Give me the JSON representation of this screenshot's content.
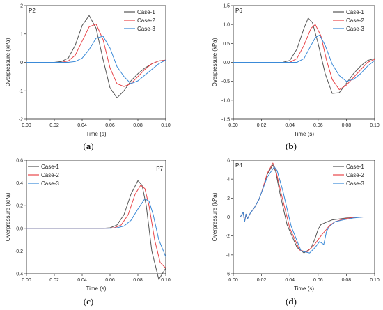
{
  "chart_data": [
    {
      "type": "line",
      "panel_label": "P2",
      "caption_open": "(",
      "caption_letter": "a",
      "caption_close": ")",
      "xlabel": "Time (s)",
      "ylabel": "Overpressure (kPa)",
      "xlim": [
        0,
        0.1
      ],
      "ylim": [
        -2,
        2
      ],
      "xticks": [
        "0.00",
        "0.02",
        "0.04",
        "0.06",
        "0.08",
        "0.10"
      ],
      "xtick_values": [
        0,
        0.02,
        0.04,
        0.06,
        0.08,
        0.1
      ],
      "yticks": [
        "-2",
        "-1",
        "0",
        "1",
        "2"
      ],
      "ytick_values": [
        -2,
        -1,
        0,
        1,
        2
      ],
      "legend_position": "top-right",
      "series": [
        {
          "name": "Case-1",
          "color": "#555555",
          "x": [
            0,
            0.02,
            0.025,
            0.03,
            0.035,
            0.04,
            0.045,
            0.05,
            0.055,
            0.06,
            0.065,
            0.07,
            0.075,
            0.08,
            0.085,
            0.09,
            0.095,
            0.1
          ],
          "y": [
            0,
            0,
            0.03,
            0.15,
            0.6,
            1.3,
            1.65,
            1.2,
            0.1,
            -0.9,
            -1.25,
            -1.0,
            -0.65,
            -0.4,
            -0.2,
            -0.05,
            0.05,
            0.08
          ]
        },
        {
          "name": "Case-2",
          "color": "#e8454a",
          "x": [
            0,
            0.025,
            0.03,
            0.035,
            0.04,
            0.045,
            0.05,
            0.055,
            0.06,
            0.065,
            0.07,
            0.075,
            0.08,
            0.085,
            0.09,
            0.095,
            0.1
          ],
          "y": [
            0,
            0,
            0.05,
            0.25,
            0.75,
            1.25,
            1.35,
            0.8,
            -0.2,
            -0.75,
            -0.85,
            -0.75,
            -0.5,
            -0.25,
            -0.05,
            0.05,
            0.08
          ]
        },
        {
          "name": "Case-3",
          "color": "#3a8ad8",
          "x": [
            0,
            0.03,
            0.035,
            0.04,
            0.045,
            0.05,
            0.055,
            0.06,
            0.065,
            0.07,
            0.075,
            0.08,
            0.085,
            0.09,
            0.095,
            0.1
          ],
          "y": [
            0,
            0,
            0.03,
            0.15,
            0.45,
            0.85,
            0.92,
            0.5,
            -0.15,
            -0.5,
            -0.75,
            -0.65,
            -0.45,
            -0.25,
            -0.05,
            0.08
          ]
        }
      ]
    },
    {
      "type": "line",
      "panel_label": "P6",
      "caption_open": "(",
      "caption_letter": "b",
      "caption_close": ")",
      "xlabel": "Time (s)",
      "ylabel": "Overpressure (kPa)",
      "xlim": [
        0,
        0.1
      ],
      "ylim": [
        -1.5,
        1.5
      ],
      "xticks": [
        "0.00",
        "0.02",
        "0.04",
        "0.06",
        "0.08",
        "0.10"
      ],
      "xtick_values": [
        0,
        0.02,
        0.04,
        0.06,
        0.08,
        0.1
      ],
      "yticks": [
        "-1.5",
        "-1.0",
        "-0.5",
        "0.0",
        "0.5",
        "1.0",
        "1.5"
      ],
      "ytick_values": [
        -1.5,
        -1,
        -0.5,
        0,
        0.5,
        1,
        1.5
      ],
      "legend_position": "top-right",
      "series": [
        {
          "name": "Case-1",
          "color": "#555555",
          "x": [
            0,
            0.035,
            0.04,
            0.045,
            0.05,
            0.053,
            0.056,
            0.06,
            0.065,
            0.07,
            0.075,
            0.08,
            0.085,
            0.09,
            0.095,
            0.1
          ],
          "y": [
            0,
            0,
            0.05,
            0.35,
            0.9,
            1.17,
            1.05,
            0.5,
            -0.3,
            -0.82,
            -0.8,
            -0.55,
            -0.3,
            -0.1,
            0.05,
            0.1
          ]
        },
        {
          "name": "Case-2",
          "color": "#e8454a",
          "x": [
            0,
            0.04,
            0.045,
            0.05,
            0.055,
            0.058,
            0.062,
            0.066,
            0.07,
            0.075,
            0.08,
            0.085,
            0.09,
            0.095,
            0.1
          ],
          "y": [
            0,
            0,
            0.1,
            0.45,
            0.9,
            1.0,
            0.7,
            0.05,
            -0.45,
            -0.72,
            -0.6,
            -0.4,
            -0.2,
            0.0,
            0.08
          ]
        },
        {
          "name": "Case-3",
          "color": "#3a8ad8",
          "x": [
            0,
            0.045,
            0.05,
            0.055,
            0.058,
            0.061,
            0.065,
            0.07,
            0.075,
            0.08,
            0.085,
            0.09,
            0.095,
            0.1
          ],
          "y": [
            0,
            0,
            0.1,
            0.45,
            0.65,
            0.72,
            0.45,
            -0.05,
            -0.35,
            -0.5,
            -0.45,
            -0.3,
            -0.1,
            0.05
          ]
        }
      ]
    },
    {
      "type": "line",
      "panel_label": "P7",
      "caption_open": "(",
      "caption_letter": "c",
      "caption_close": ")",
      "xlabel": "Time (s)",
      "ylabel": "Overpressure (kPa)",
      "xlim": [
        0,
        0.1
      ],
      "ylim": [
        -0.4,
        0.6
      ],
      "xticks": [
        "0.00",
        "0.02",
        "0.04",
        "0.06",
        "0.08",
        "0.10"
      ],
      "xtick_values": [
        0,
        0.02,
        0.04,
        0.06,
        0.08,
        0.1
      ],
      "yticks": [
        "-0.4",
        "-0.2",
        "0.0",
        "0.2",
        "0.4",
        "0.6"
      ],
      "ytick_values": [
        -0.4,
        -0.2,
        0,
        0.2,
        0.4,
        0.6
      ],
      "legend_position": "top-left",
      "series": [
        {
          "name": "Case-1",
          "color": "#555555",
          "x": [
            0,
            0.055,
            0.06,
            0.065,
            0.07,
            0.075,
            0.08,
            0.083,
            0.086,
            0.09,
            0.095,
            0.1
          ],
          "y": [
            0,
            0,
            0.005,
            0.03,
            0.12,
            0.3,
            0.42,
            0.38,
            0.2,
            -0.2,
            -0.45,
            -0.35
          ]
        },
        {
          "name": "Case-2",
          "color": "#e8454a",
          "x": [
            0,
            0.058,
            0.063,
            0.068,
            0.073,
            0.078,
            0.082,
            0.085,
            0.088,
            0.092,
            0.096,
            0.1
          ],
          "y": [
            0,
            0,
            0.005,
            0.03,
            0.12,
            0.3,
            0.38,
            0.35,
            0.2,
            -0.1,
            -0.3,
            -0.35
          ]
        },
        {
          "name": "Case-3",
          "color": "#3a8ad8",
          "x": [
            0,
            0.06,
            0.065,
            0.07,
            0.075,
            0.08,
            0.085,
            0.088,
            0.091,
            0.095,
            0.1
          ],
          "y": [
            0,
            0,
            0.005,
            0.02,
            0.07,
            0.17,
            0.26,
            0.24,
            0.12,
            -0.1,
            -0.25
          ]
        }
      ]
    },
    {
      "type": "line",
      "panel_label": "P4",
      "caption_open": "(",
      "caption_letter": "d",
      "caption_close": ")",
      "xlabel": "Time (s)",
      "ylabel": "Overpressure (kPa)",
      "xlim": [
        0,
        0.1
      ],
      "ylim": [
        -6,
        6
      ],
      "xticks": [
        "0.00",
        "0.02",
        "0.04",
        "0.06",
        "0.08",
        "0.10"
      ],
      "xtick_values": [
        0,
        0.02,
        0.04,
        0.06,
        0.08,
        0.1
      ],
      "yticks": [
        "-6",
        "-4",
        "-2",
        "0",
        "2",
        "4",
        "6"
      ],
      "ytick_values": [
        -6,
        -4,
        -2,
        0,
        2,
        4,
        6
      ],
      "legend_position": "top-right",
      "series": [
        {
          "name": "Case-1",
          "color": "#555555",
          "x": [
            0,
            0.005,
            0.007,
            0.008,
            0.009,
            0.01,
            0.012,
            0.015,
            0.018,
            0.02,
            0.024,
            0.028,
            0.03,
            0.033,
            0.038,
            0.045,
            0.05,
            0.055,
            0.058,
            0.06,
            0.062,
            0.065,
            0.07,
            0.075,
            0.08,
            0.09,
            0.1
          ],
          "y": [
            0,
            0,
            0.5,
            -0.5,
            0.3,
            -0.2,
            0.4,
            1,
            1.8,
            2.6,
            4.5,
            5.5,
            4.8,
            2.5,
            -0.8,
            -3.2,
            -3.8,
            -3.3,
            -2.2,
            -1.3,
            -0.8,
            -0.6,
            -0.3,
            -0.2,
            -0.1,
            0,
            0
          ]
        },
        {
          "name": "Case-2",
          "color": "#e8454a",
          "x": [
            0,
            0.005,
            0.007,
            0.008,
            0.009,
            0.01,
            0.012,
            0.015,
            0.018,
            0.02,
            0.024,
            0.028,
            0.03,
            0.034,
            0.04,
            0.047,
            0.052,
            0.057,
            0.06,
            0.063,
            0.066,
            0.068,
            0.072,
            0.078,
            0.085,
            0.092,
            0.1
          ],
          "y": [
            0,
            0,
            0.5,
            -0.5,
            0.3,
            -0.2,
            0.4,
            1,
            1.8,
            2.6,
            4.6,
            5.7,
            5.0,
            2.4,
            -1.2,
            -3.5,
            -3.7,
            -3.0,
            -2.4,
            -1.8,
            -1.3,
            -0.9,
            -0.5,
            -0.2,
            -0.05,
            0,
            0
          ]
        },
        {
          "name": "Case-3",
          "color": "#3a8ad8",
          "x": [
            0,
            0.005,
            0.007,
            0.008,
            0.009,
            0.01,
            0.012,
            0.015,
            0.018,
            0.02,
            0.024,
            0.029,
            0.031,
            0.035,
            0.041,
            0.048,
            0.054,
            0.058,
            0.061,
            0.064,
            0.066,
            0.068,
            0.072,
            0.078,
            0.085,
            0.092,
            0.1
          ],
          "y": [
            0,
            0,
            0.5,
            -0.5,
            0.3,
            -0.2,
            0.4,
            1,
            1.8,
            2.6,
            4.2,
            5.3,
            4.9,
            2.8,
            -1.0,
            -3.6,
            -3.8,
            -3.2,
            -2.6,
            -2.9,
            -1.5,
            -1.0,
            -0.5,
            -0.3,
            -0.1,
            0,
            0
          ]
        }
      ]
    }
  ]
}
